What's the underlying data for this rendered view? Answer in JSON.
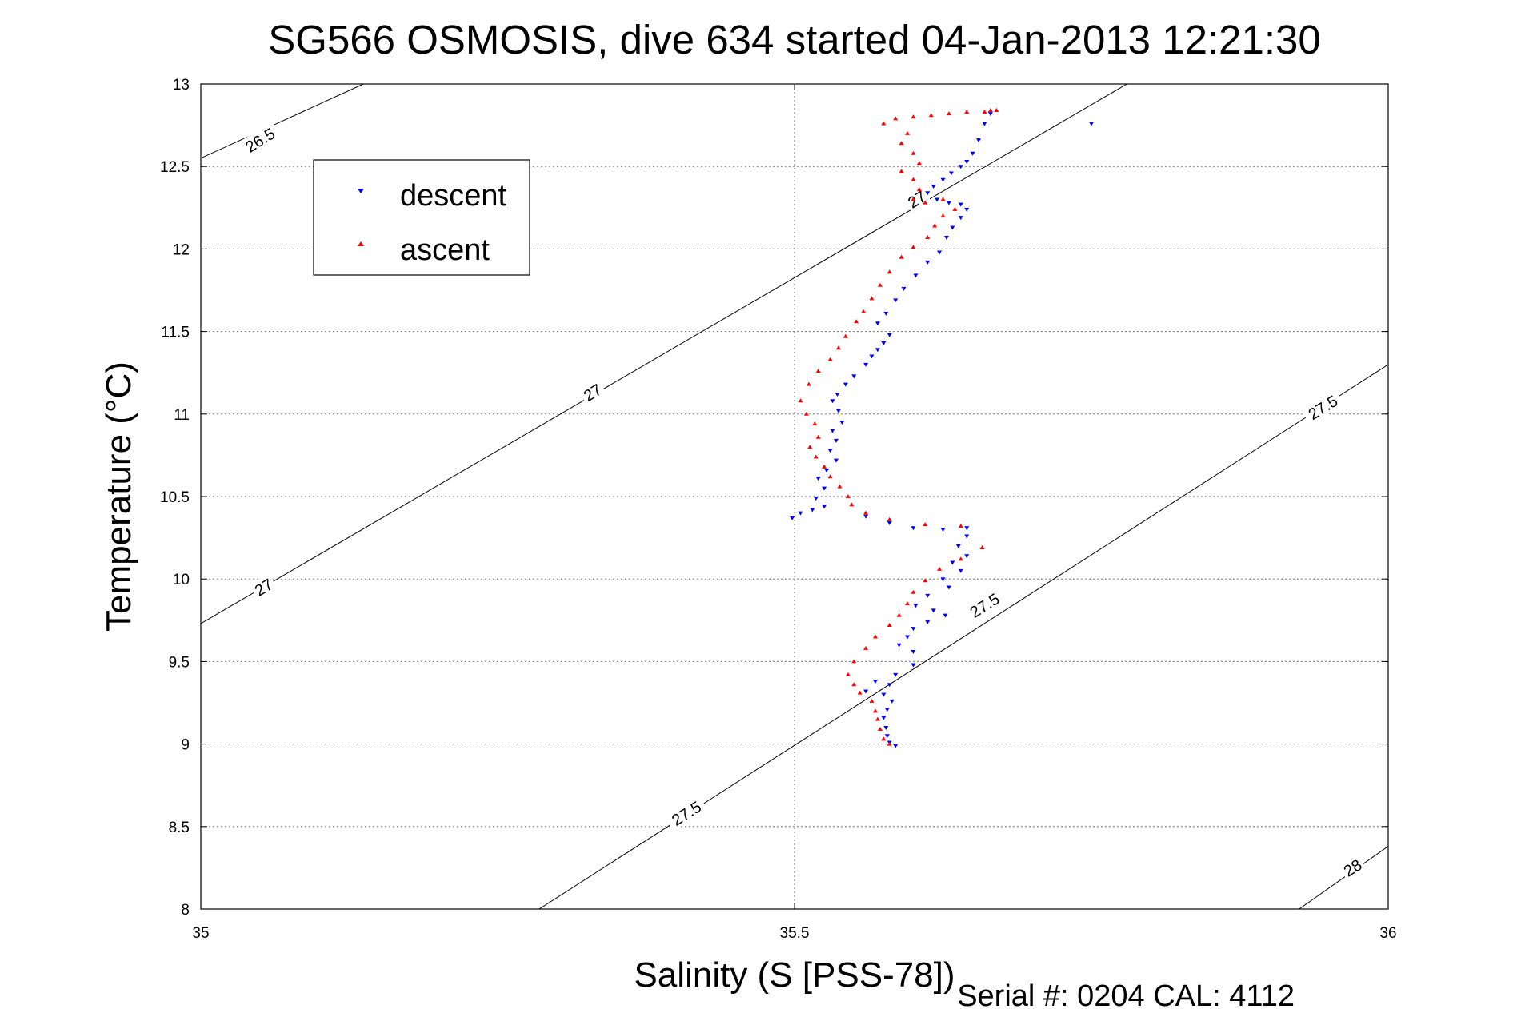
{
  "chart_data": {
    "type": "scatter",
    "title": "SG566 OSMOSIS, dive 634 started 04-Jan-2013 12:21:30",
    "xlabel": "Salinity (S [PSS-78])",
    "ylabel": "Temperature (°C)",
    "footer": "Serial #: 0204  CAL: 4112",
    "xlim": [
      35,
      36
    ],
    "ylim": [
      8,
      13
    ],
    "xticks": [
      35,
      35.5,
      36
    ],
    "xtick_labels": [
      "35",
      "35.5",
      "36"
    ],
    "yticks": [
      8,
      8.5,
      9,
      9.5,
      10,
      10.5,
      11,
      11.5,
      12,
      12.5,
      13
    ],
    "ytick_labels": [
      "8",
      "8.5",
      "9",
      "9.5",
      "10",
      "10.5",
      "11",
      "11.5",
      "12",
      "12.5",
      "13"
    ],
    "grid": true,
    "legend_position": "top-left",
    "density_contours": [
      {
        "level": "26.5",
        "from": [
          35,
          12.55
        ],
        "to": [
          35.137,
          13
        ]
      },
      {
        "level": "27",
        "from": [
          35,
          9.73
        ],
        "to": [
          35.78,
          13
        ]
      },
      {
        "level": "27.5",
        "from": [
          35.285,
          8
        ],
        "to": [
          36,
          11.3
        ]
      },
      {
        "level": "28",
        "from": [
          35.925,
          8
        ],
        "to": [
          36,
          8.38
        ]
      }
    ],
    "contour_labels": [
      {
        "text": "26.5",
        "x": 35.05,
        "y": 12.66
      },
      {
        "text": "27",
        "x": 35.33,
        "y": 11.13
      },
      {
        "text": "27",
        "x": 35.053,
        "y": 9.95
      },
      {
        "text": "27",
        "x": 35.603,
        "y": 12.3
      },
      {
        "text": "27.5",
        "x": 35.945,
        "y": 11.04
      },
      {
        "text": "27.5",
        "x": 35.66,
        "y": 9.84
      },
      {
        "text": "27.5",
        "x": 35.409,
        "y": 8.58
      },
      {
        "text": "28",
        "x": 35.97,
        "y": 8.25
      }
    ],
    "series": [
      {
        "name": "descent",
        "color": "#0000ff",
        "marker": "triangle-down",
        "points": [
          [
            35.665,
            12.82
          ],
          [
            35.66,
            12.76
          ],
          [
            35.655,
            12.66
          ],
          [
            35.65,
            12.58
          ],
          [
            35.645,
            12.53
          ],
          [
            35.64,
            12.5
          ],
          [
            35.632,
            12.46
          ],
          [
            35.625,
            12.42
          ],
          [
            35.617,
            12.38
          ],
          [
            35.612,
            12.34
          ],
          [
            35.62,
            12.3
          ],
          [
            35.63,
            12.28
          ],
          [
            35.64,
            12.27
          ],
          [
            35.645,
            12.24
          ],
          [
            35.64,
            12.19
          ],
          [
            35.633,
            12.13
          ],
          [
            35.628,
            12.07
          ],
          [
            35.622,
            11.98
          ],
          [
            35.612,
            11.92
          ],
          [
            35.602,
            11.84
          ],
          [
            35.592,
            11.76
          ],
          [
            35.585,
            11.69
          ],
          [
            35.577,
            11.61
          ],
          [
            35.57,
            11.55
          ],
          [
            35.58,
            11.48
          ],
          [
            35.575,
            11.43
          ],
          [
            35.57,
            11.39
          ],
          [
            35.565,
            11.35
          ],
          [
            35.56,
            11.3
          ],
          [
            35.55,
            11.23
          ],
          [
            35.543,
            11.18
          ],
          [
            35.536,
            11.12
          ],
          [
            35.532,
            11.08
          ],
          [
            35.537,
            11.02
          ],
          [
            35.54,
            10.95
          ],
          [
            35.532,
            10.9
          ],
          [
            35.535,
            10.84
          ],
          [
            35.53,
            10.78
          ],
          [
            35.535,
            10.72
          ],
          [
            35.527,
            10.66
          ],
          [
            35.52,
            10.61
          ],
          [
            35.525,
            10.55
          ],
          [
            35.518,
            10.49
          ],
          [
            35.525,
            10.44
          ],
          [
            35.515,
            10.42
          ],
          [
            35.505,
            10.4
          ],
          [
            35.498,
            10.37
          ],
          [
            35.56,
            10.38
          ],
          [
            35.58,
            10.34
          ],
          [
            35.6,
            10.31
          ],
          [
            35.625,
            10.3
          ],
          [
            35.645,
            10.31
          ],
          [
            35.645,
            10.26
          ],
          [
            35.638,
            10.2
          ],
          [
            35.645,
            10.14
          ],
          [
            35.633,
            10.1
          ],
          [
            35.64,
            10.05
          ],
          [
            35.625,
            10.0
          ],
          [
            35.63,
            9.95
          ],
          [
            35.612,
            9.9
          ],
          [
            35.602,
            9.84
          ],
          [
            35.617,
            9.81
          ],
          [
            35.627,
            9.78
          ],
          [
            35.612,
            9.74
          ],
          [
            35.6,
            9.7
          ],
          [
            35.595,
            9.65
          ],
          [
            35.588,
            9.6
          ],
          [
            35.6,
            9.56
          ],
          [
            35.6,
            9.48
          ],
          [
            35.585,
            9.42
          ],
          [
            35.568,
            9.38
          ],
          [
            35.58,
            9.36
          ],
          [
            35.56,
            9.32
          ],
          [
            35.575,
            9.3
          ],
          [
            35.582,
            9.26
          ],
          [
            35.578,
            9.21
          ],
          [
            35.575,
            9.16
          ],
          [
            35.577,
            9.1
          ],
          [
            35.578,
            9.05
          ],
          [
            35.58,
            9.01
          ],
          [
            35.585,
            8.99
          ],
          [
            35.75,
            12.76
          ]
        ]
      },
      {
        "name": "ascent",
        "color": "#ff0000",
        "marker": "triangle-up",
        "points": [
          [
            35.67,
            12.84
          ],
          [
            35.665,
            12.84
          ],
          [
            35.66,
            12.83
          ],
          [
            35.645,
            12.83
          ],
          [
            35.63,
            12.82
          ],
          [
            35.615,
            12.81
          ],
          [
            35.6,
            12.8
          ],
          [
            35.585,
            12.79
          ],
          [
            35.575,
            12.76
          ],
          [
            35.595,
            12.7
          ],
          [
            35.59,
            12.64
          ],
          [
            35.6,
            12.58
          ],
          [
            35.605,
            12.52
          ],
          [
            35.59,
            12.47
          ],
          [
            35.6,
            12.42
          ],
          [
            35.605,
            12.36
          ],
          [
            35.6,
            12.3
          ],
          [
            35.61,
            12.28
          ],
          [
            35.625,
            12.3
          ],
          [
            35.635,
            12.24
          ],
          [
            35.625,
            12.2
          ],
          [
            35.618,
            12.14
          ],
          [
            35.612,
            12.07
          ],
          [
            35.6,
            12.01
          ],
          [
            35.59,
            11.95
          ],
          [
            35.58,
            11.86
          ],
          [
            35.572,
            11.78
          ],
          [
            35.565,
            11.7
          ],
          [
            35.558,
            11.62
          ],
          [
            35.552,
            11.56
          ],
          [
            35.543,
            11.47
          ],
          [
            35.537,
            11.4
          ],
          [
            35.53,
            11.33
          ],
          [
            35.52,
            11.26
          ],
          [
            35.512,
            11.18
          ],
          [
            35.505,
            11.08
          ],
          [
            35.51,
            11.0
          ],
          [
            35.517,
            10.94
          ],
          [
            35.52,
            10.86
          ],
          [
            35.513,
            10.8
          ],
          [
            35.518,
            10.74
          ],
          [
            35.525,
            10.68
          ],
          [
            35.53,
            10.62
          ],
          [
            35.538,
            10.56
          ],
          [
            35.545,
            10.5
          ],
          [
            35.548,
            10.45
          ],
          [
            35.56,
            10.4
          ],
          [
            35.58,
            10.36
          ],
          [
            35.61,
            10.33
          ],
          [
            35.64,
            10.32
          ],
          [
            35.658,
            10.19
          ],
          [
            35.64,
            10.12
          ],
          [
            35.622,
            10.06
          ],
          [
            35.61,
            9.99
          ],
          [
            35.6,
            9.92
          ],
          [
            35.595,
            9.85
          ],
          [
            35.588,
            9.78
          ],
          [
            35.58,
            9.72
          ],
          [
            35.568,
            9.65
          ],
          [
            35.56,
            9.58
          ],
          [
            35.55,
            9.5
          ],
          [
            35.545,
            9.42
          ],
          [
            35.55,
            9.36
          ],
          [
            35.555,
            9.31
          ],
          [
            35.565,
            9.26
          ],
          [
            35.568,
            9.2
          ],
          [
            35.57,
            9.15
          ],
          [
            35.572,
            9.09
          ],
          [
            35.575,
            9.03
          ],
          [
            35.58,
            9.0
          ]
        ]
      }
    ]
  }
}
